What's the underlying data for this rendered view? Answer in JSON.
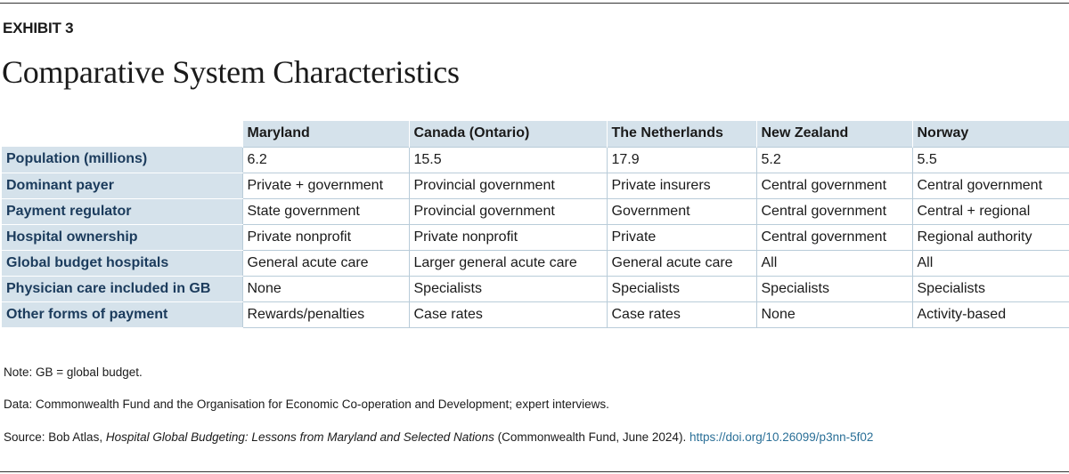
{
  "exhibit_label": "EXHIBIT 3",
  "title": "Comparative System Characteristics",
  "table": {
    "columns": [
      "Maryland",
      "Canada (Ontario)",
      "The Netherlands",
      "New Zealand",
      "Norway"
    ],
    "rows": [
      {
        "label": "Population (millions)",
        "cells": [
          "6.2",
          "15.5",
          "17.9",
          "5.2",
          "5.5"
        ]
      },
      {
        "label": "Dominant payer",
        "cells": [
          "Private + government",
          "Provincial government",
          "Private insurers",
          "Central government",
          "Central government"
        ]
      },
      {
        "label": "Payment regulator",
        "cells": [
          "State government",
          "Provincial government",
          "Government",
          "Central government",
          "Central + regional"
        ]
      },
      {
        "label": "Hospital ownership",
        "cells": [
          "Private nonprofit",
          "Private nonprofit",
          "Private",
          "Central government",
          "Regional authority"
        ]
      },
      {
        "label": "Global budget hospitals",
        "cells": [
          "General acute care",
          "Larger general acute care",
          "General acute care",
          "All",
          "All"
        ]
      },
      {
        "label": "Physician care included in GB",
        "cells": [
          "None",
          "Specialists",
          "Specialists",
          "Specialists",
          "Specialists"
        ]
      },
      {
        "label": "Other forms of payment",
        "cells": [
          "Rewards/penalties",
          "Case rates",
          "Case rates",
          "None",
          "Activity-based"
        ]
      }
    ]
  },
  "notes": {
    "note": "Note: GB = global budget.",
    "data": "Data: Commonwealth Fund and the Organisation for Economic Co-operation and Development; expert interviews.",
    "source_prefix": "Source: Bob Atlas, ",
    "source_title": "Hospital Global Budgeting: Lessons from Maryland and Selected Nations",
    "source_suffix": " (Commonwealth Fund, June 2024). ",
    "source_link": "https://doi.org/10.26099/p3nn-5f02"
  },
  "colors": {
    "header_fill": "#d5e2eb",
    "row_label_text": "#1b3b5c",
    "grid_line": "#b9ccd9",
    "link": "#2a6f97"
  }
}
